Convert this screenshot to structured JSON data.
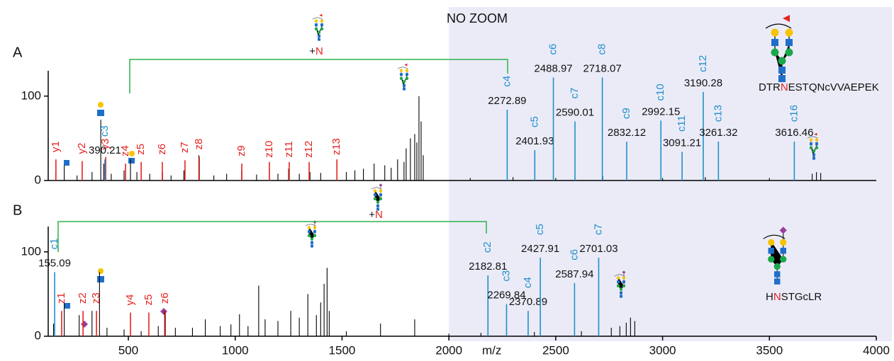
{
  "chart_data": [
    {
      "type": "spectrum",
      "panel_label": "A",
      "annotation": {
        "text": "NO ZOOM",
        "x": 2000
      },
      "glycan_site_label": [
        "+",
        "N"
      ],
      "sequence": [
        "DTR",
        "N",
        "ESTQNcVVAEPEK"
      ],
      "xlim": [
        125,
        4000
      ],
      "ylim": [
        0,
        130
      ],
      "yticks": [
        0,
        100
      ],
      "series": [
        {
          "color": "#1f8fc9",
          "mass_labels": true,
          "labels": [
            "c3",
            "c4",
            "c5",
            "c6",
            "c7",
            "c8",
            "c9",
            "c10",
            "c11",
            "c12",
            "c13",
            "c16"
          ],
          "x": [
            390.21,
            2272.89,
            2401.93,
            2488.97,
            2590.01,
            2718.07,
            2832.12,
            2992.15,
            3091.21,
            3190.28,
            3261.32,
            3616.46
          ],
          "values": [
            25,
            84,
            36,
            122,
            70,
            122,
            46,
            71,
            34,
            105,
            46,
            46
          ]
        },
        {
          "color": "#e32420",
          "mass_labels": false,
          "labels": [
            "y1",
            "y2",
            "y3",
            "z4",
            "z5",
            "z6",
            "z7",
            "z8",
            "z9",
            "z10",
            "z11",
            "z12",
            "z13"
          ],
          "x": [
            161,
            284,
            394,
            487,
            560,
            659,
            765,
            832,
            1031,
            1160,
            1253,
            1346,
            1476
          ],
          "values": [
            25,
            23,
            28,
            20,
            22,
            22,
            24,
            28,
            20,
            22,
            22,
            22,
            25
          ]
        },
        {
          "color": "#000000",
          "mass_labels": false,
          "x": [
            160,
            200,
            260,
            330,
            371,
            385,
            420,
            480,
            510,
            540,
            600,
            660,
            700,
            760,
            830,
            900,
            960,
            1030,
            1100,
            1160,
            1200,
            1250,
            1300,
            1350,
            1400,
            1476,
            1520,
            1560,
            1600,
            1650,
            1700,
            1730,
            1760,
            1790,
            1800,
            1820,
            1840,
            1850,
            1860,
            1870,
            1880,
            2100,
            2300,
            2500,
            2720,
            3000,
            3200,
            3500,
            3700,
            3720,
            3740
          ],
          "values": [
            8,
            18,
            6,
            10,
            72,
            20,
            8,
            12,
            25,
            10,
            8,
            10,
            6,
            12,
            30,
            6,
            8,
            12,
            7,
            10,
            8,
            14,
            8,
            10,
            9,
            15,
            10,
            12,
            14,
            20,
            18,
            15,
            25,
            22,
            38,
            50,
            55,
            45,
            100,
            70,
            30,
            3,
            4,
            3,
            5,
            3,
            4,
            3,
            8,
            10,
            9
          ]
        }
      ]
    },
    {
      "type": "spectrum",
      "panel_label": "B",
      "xlabel": "m/z",
      "glycan_site_label": [
        "+",
        "N"
      ],
      "sequence": [
        "H",
        "N",
        "STGcLR"
      ],
      "xlim": [
        125,
        4000
      ],
      "ylim": [
        0,
        130
      ],
      "yticks": [
        0,
        100
      ],
      "xticks": [
        500,
        1000,
        1500,
        2000,
        2500,
        3000,
        3500,
        4000
      ],
      "series": [
        {
          "color": "#1f8fc9",
          "mass_labels": true,
          "labels": [
            "c1",
            "c2",
            "c3",
            "c4",
            "c5",
            "c6",
            "c7"
          ],
          "x": [
            155.09,
            2182.81,
            2269.84,
            2370.89,
            2427.91,
            2587.94,
            2701.03
          ],
          "values": [
            76,
            72,
            38,
            30,
            93,
            63,
            93
          ]
        },
        {
          "color": "#e32420",
          "mass_labels": false,
          "labels": [
            "z1",
            "z2",
            "z3",
            "y4",
            "z5",
            "z6"
          ],
          "x": [
            188,
            288,
            351,
            510,
            596,
            673
          ],
          "values": [
            30,
            30,
            30,
            28,
            28,
            30
          ]
        },
        {
          "color": "#000000",
          "mass_labels": false,
          "x": [
            150,
            200,
            270,
            330,
            365,
            400,
            480,
            560,
            640,
            670,
            720,
            800,
            860,
            930,
            980,
            1020,
            1060,
            1110,
            1140,
            1200,
            1260,
            1300,
            1340,
            1380,
            1400,
            1416,
            1430,
            1440,
            1520,
            1680,
            1840,
            2000,
            2150,
            2400,
            2620,
            2760,
            2800,
            2830,
            2850,
            2870
          ],
          "values": [
            15,
            40,
            25,
            30,
            76,
            10,
            8,
            6,
            12,
            30,
            10,
            10,
            20,
            12,
            14,
            26,
            12,
            60,
            20,
            18,
            30,
            22,
            50,
            25,
            40,
            62,
            81,
            30,
            6,
            15,
            20,
            3,
            4,
            5,
            6,
            10,
            12,
            16,
            22,
            18
          ]
        }
      ]
    }
  ]
}
